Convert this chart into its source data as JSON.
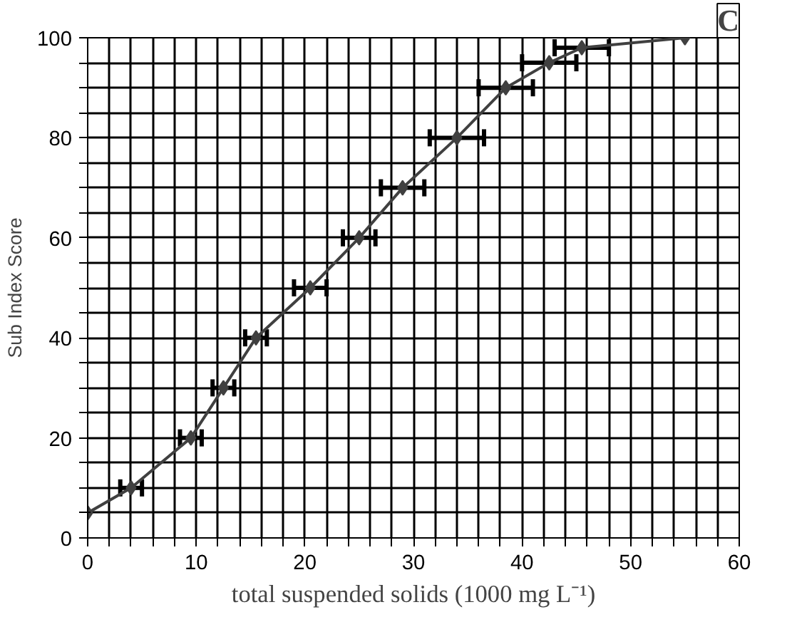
{
  "chart_data": {
    "type": "line",
    "xlabel": "total suspended solids (1000 mg L⁻¹)",
    "ylabel": "Sub Index Score",
    "annotations": [
      "C"
    ],
    "x": [
      0,
      4,
      9.5,
      12.5,
      15.5,
      20.5,
      25,
      29,
      34,
      38.5,
      42.5,
      45.5,
      55
    ],
    "series": [
      {
        "color": "#404040",
        "values": [
          5,
          10,
          20,
          30,
          40,
          50,
          60,
          70,
          80,
          90,
          95,
          98,
          100
        ],
        "xerrors": [
          null,
          1,
          1,
          1,
          1,
          1.5,
          1.5,
          2,
          2.5,
          2.5,
          2.5,
          2.5,
          null
        ]
      }
    ],
    "marker": "diamond",
    "line_style": "solid",
    "grid": true,
    "xlim": [
      0,
      60
    ],
    "ylim": [
      0,
      100
    ],
    "xticks": [
      0,
      {
        "value": 2,
        "label": null
      },
      {
        "value": 4,
        "label": null
      },
      {
        "value": 6,
        "label": null
      },
      {
        "value": 8,
        "label": null
      },
      10,
      {
        "value": 12,
        "label": null
      },
      {
        "value": 14,
        "label": null
      },
      {
        "value": 16,
        "label": null
      },
      {
        "value": 18,
        "label": null
      },
      20,
      {
        "value": 22,
        "label": null
      },
      {
        "value": 24,
        "label": null
      },
      {
        "value": 26,
        "label": null
      },
      {
        "value": 28,
        "label": null
      },
      30,
      {
        "value": 32,
        "label": null
      },
      {
        "value": 34,
        "label": null
      },
      {
        "value": 36,
        "label": null
      },
      {
        "value": 38,
        "label": null
      },
      40,
      {
        "value": 42,
        "label": null
      },
      {
        "value": 44,
        "label": null
      },
      {
        "value": 46,
        "label": null
      },
      {
        "value": 48,
        "label": null
      },
      50,
      {
        "value": 52,
        "label": null
      },
      {
        "value": 54,
        "label": null
      },
      {
        "value": 56,
        "label": null
      },
      {
        "value": 58,
        "label": null
      },
      60
    ],
    "yticks": [
      0,
      {
        "value": 5,
        "label": null
      },
      {
        "value": 10,
        "label": null
      },
      {
        "value": 15,
        "label": null
      },
      20,
      {
        "value": 25,
        "label": null
      },
      {
        "value": 30,
        "label": null
      },
      {
        "value": 35,
        "label": null
      },
      40,
      {
        "value": 45,
        "label": null
      },
      {
        "value": 50,
        "label": null
      },
      {
        "value": 55,
        "label": null
      },
      60,
      {
        "value": 65,
        "label": null
      },
      {
        "value": 70,
        "label": null
      },
      {
        "value": 75,
        "label": null
      },
      80,
      {
        "value": 85,
        "label": null
      },
      {
        "value": 90,
        "label": null
      },
      {
        "value": 95,
        "label": null
      },
      100
    ]
  }
}
